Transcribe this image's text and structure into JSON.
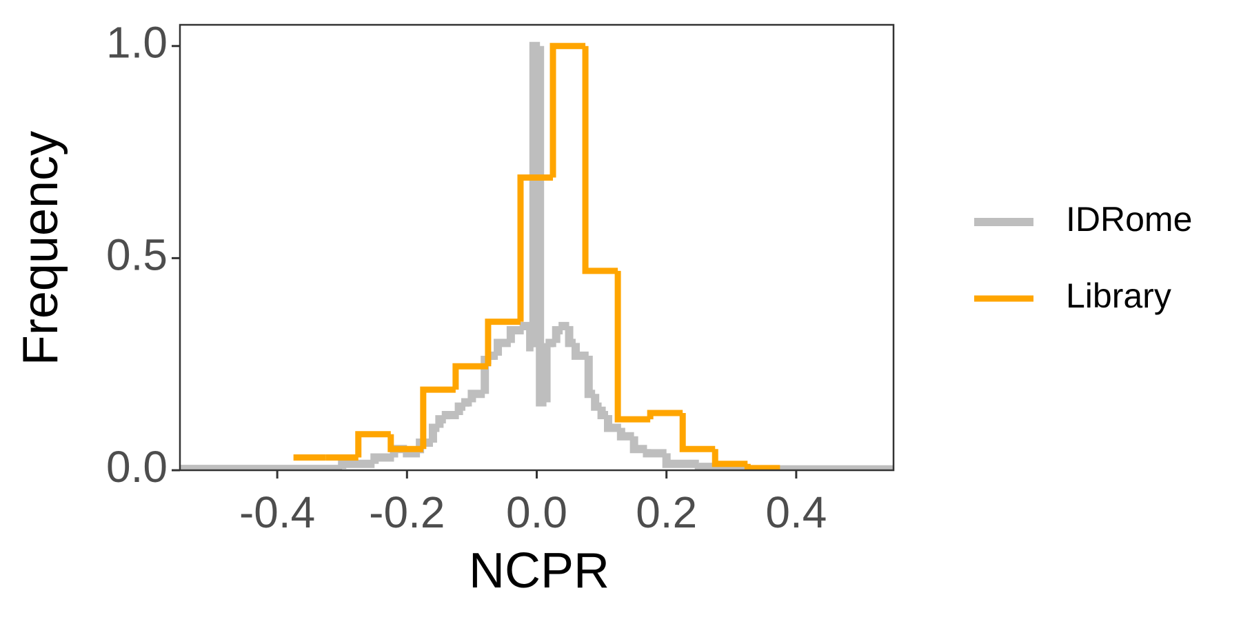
{
  "chart_data": {
    "type": "histogram",
    "x_label": "NCPR",
    "y_label": "Frequency",
    "xlim": [
      -0.55,
      0.55
    ],
    "ylim": [
      0,
      1.05
    ],
    "xticks": [
      -0.4,
      -0.2,
      {
        "value": 0,
        "label": "0.0"
      },
      0.2,
      0.4
    ],
    "yticks": [
      {
        "value": 0,
        "label": "0.0"
      },
      0.5,
      {
        "value": 1,
        "label": "1.0"
      }
    ],
    "grid": false,
    "legend": "right",
    "series": [
      {
        "name": "IDRome",
        "color": "#bebebe",
        "bins": [
          -0.55,
          -0.3,
          -0.25,
          -0.22,
          -0.2,
          -0.18,
          -0.16,
          -0.15,
          -0.14,
          -0.12,
          -0.11,
          -0.1,
          -0.08,
          -0.07,
          -0.06,
          -0.04,
          -0.02,
          -0.01,
          -0.005,
          0.005,
          0.015,
          0.02,
          0.03,
          0.04,
          0.05,
          0.06,
          0.08,
          0.09,
          0.1,
          0.11,
          0.13,
          0.15,
          0.17,
          0.2,
          0.25,
          0.3,
          0.55
        ],
        "values": [
          0.003,
          0.015,
          0.03,
          0.05,
          0.04,
          0.065,
          0.1,
          0.12,
          0.13,
          0.15,
          0.16,
          0.18,
          0.26,
          0.27,
          0.3,
          0.33,
          0.34,
          0.29,
          1.0,
          0.16,
          0.29,
          0.3,
          0.33,
          0.34,
          0.3,
          0.27,
          0.18,
          0.15,
          0.13,
          0.1,
          0.08,
          0.05,
          0.04,
          0.015,
          0.008,
          0.002
        ]
      },
      {
        "name": "Library",
        "color": "#ffa500",
        "bins": [
          -0.375,
          -0.325,
          -0.275,
          -0.225,
          -0.175,
          -0.125,
          -0.075,
          -0.025,
          0.025,
          0.075,
          0.125,
          0.175,
          0.225,
          0.275,
          0.325,
          0.375
        ],
        "values": [
          0.03,
          0.03,
          0.085,
          0.05,
          0.19,
          0.245,
          0.35,
          0.69,
          1.0,
          0.47,
          0.12,
          0.135,
          0.05,
          0.015,
          0.005
        ]
      }
    ]
  }
}
